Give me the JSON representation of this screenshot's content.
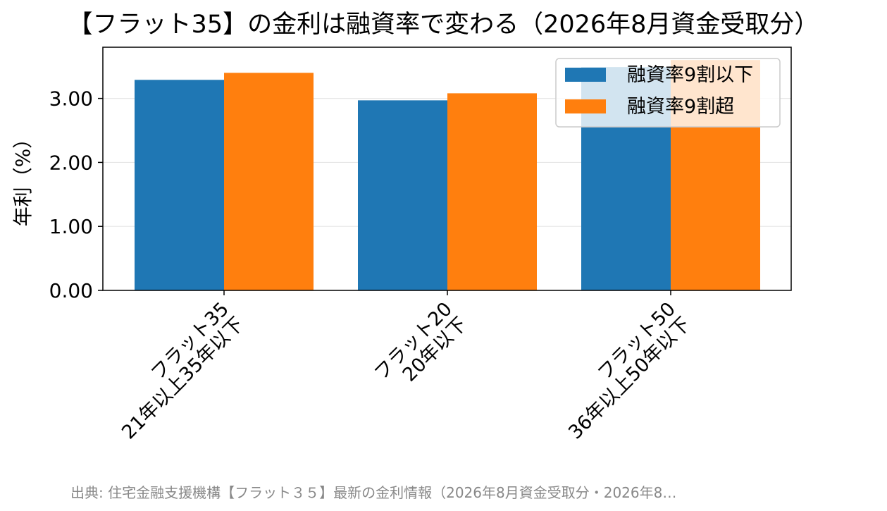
{
  "chart_data": {
    "type": "bar",
    "title": "【フラット35】の金利は融資率で変わる（2026年8月資金受取分）",
    "ylabel": "年利（%）",
    "xlabel": "",
    "categories": [
      [
        "フラット35",
        "21年以上35年以下"
      ],
      [
        "フラット20",
        "20年以下"
      ],
      [
        "フラット50",
        "36年以上50年以下"
      ]
    ],
    "series": [
      {
        "name": "融資率9割以下",
        "color": "#1f77b4",
        "values": [
          3.29,
          2.97,
          3.49
        ]
      },
      {
        "name": "融資率9割超",
        "color": "#ff7f0e",
        "values": [
          3.4,
          3.08,
          3.6
        ]
      }
    ],
    "ylim": [
      0,
      3.8
    ],
    "yticks": [
      "0.00",
      "1.00",
      "2.00",
      "3.00"
    ],
    "ytick_values": [
      0,
      1,
      2,
      3
    ],
    "grid": "y",
    "legend": "top-right"
  },
  "source": "出典: 住宅金融支援機構【フラット３５】最新の金利情報（2026年8月資金受取分・2026年8…"
}
